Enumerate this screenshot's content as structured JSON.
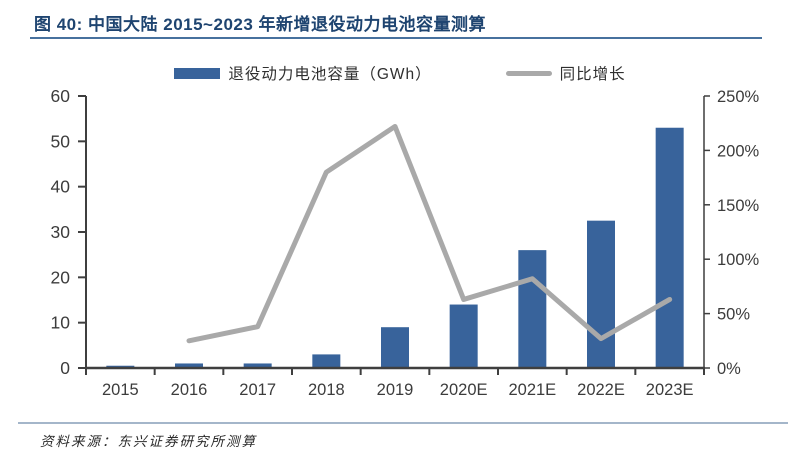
{
  "figure": {
    "title": "图 40: 中国大陆 2015~2023 年新增退役动力电池容量测算",
    "source": "资料来源：东兴证券研究所测算"
  },
  "legend": {
    "bars_label": "退役动力电池容量（GWh）",
    "line_label": "同比增长"
  },
  "colors": {
    "bar": "#38639B",
    "line": "#A9A9A9",
    "title_text": "#1E4470",
    "title_rule": "#47719E",
    "footer_rule": "#A4B6CA",
    "axis": "#3F3F3F",
    "tick_text": "#3C3C3C"
  },
  "chart_data": {
    "type": "bar",
    "subtype": "bar+line-combo",
    "categories": [
      "2015",
      "2016",
      "2017",
      "2018",
      "2019",
      "2020E",
      "2021E",
      "2022E",
      "2023E"
    ],
    "series": [
      {
        "name": "退役动力电池容量（GWh）",
        "type": "bar",
        "axis": "left",
        "values": [
          0.5,
          1,
          1,
          3,
          9,
          14,
          26,
          32.5,
          53
        ]
      },
      {
        "name": "同比增长",
        "type": "line",
        "axis": "right",
        "unit": "%",
        "values": [
          null,
          25,
          38,
          180,
          222,
          63,
          82,
          27,
          63
        ]
      }
    ],
    "left_axis": {
      "min": 0,
      "max": 60,
      "step": 10,
      "tick_labels": [
        "0",
        "10",
        "20",
        "30",
        "40",
        "50",
        "60"
      ]
    },
    "right_axis": {
      "min": 0,
      "max": 250,
      "step": 50,
      "tick_labels": [
        "0%",
        "50%",
        "100%",
        "150%",
        "200%",
        "250%"
      ]
    },
    "grid": false,
    "legend_position": "top"
  }
}
